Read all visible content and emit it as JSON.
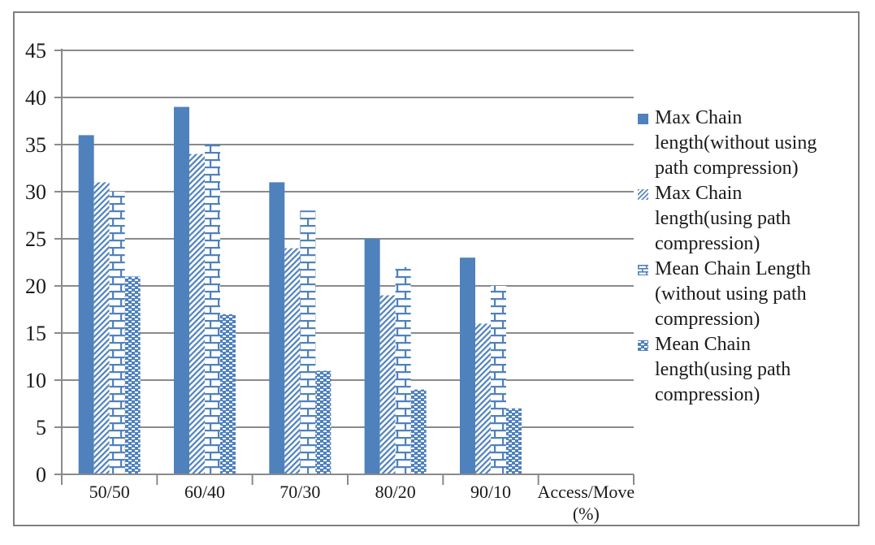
{
  "chart_data": {
    "type": "bar",
    "title": "",
    "categories": [
      "50/50",
      "60/40",
      "70/30",
      "80/20",
      "90/10"
    ],
    "x_axis_title": "Access/Move (%)",
    "x_axis_title_lines": [
      "Access/Move",
      "(%)"
    ],
    "y_ticks": [
      0,
      5,
      10,
      15,
      20,
      25,
      30,
      35,
      40,
      45
    ],
    "ylim": [
      0,
      45
    ],
    "grid": true,
    "legend_position": "right",
    "series": [
      {
        "name": "Max Chain length(without using path compression)",
        "legend_lines": [
          "Max Chain",
          "length(without using",
          "path compression)"
        ],
        "pattern": "solid",
        "values": [
          36,
          39,
          31,
          25,
          23
        ]
      },
      {
        "name": "Max Chain length(using path compression)",
        "legend_lines": [
          "Max Chain",
          "length(using path",
          "compression)"
        ],
        "pattern": "diagonal-hatch",
        "values": [
          31,
          34,
          24,
          19,
          16
        ]
      },
      {
        "name": "Mean Chain Length (without using path compression)",
        "legend_lines": [
          "Mean Chain Length",
          "(without using path",
          "compression)"
        ],
        "pattern": "brick",
        "values": [
          30,
          35,
          28,
          22,
          20
        ]
      },
      {
        "name": "Mean Chain length(using path compression)",
        "legend_lines": [
          "Mean Chain",
          "length(using path",
          "compression)"
        ],
        "pattern": "dense-dots",
        "values": [
          21,
          17,
          11,
          9,
          7
        ]
      }
    ],
    "colors": {
      "bar_blue": "#4F81BD",
      "grid_gray": "#8A8A8A",
      "text_black": "#1A1A1A",
      "frame_gray": "#7F7F7F",
      "background": "#FFFFFF"
    }
  }
}
